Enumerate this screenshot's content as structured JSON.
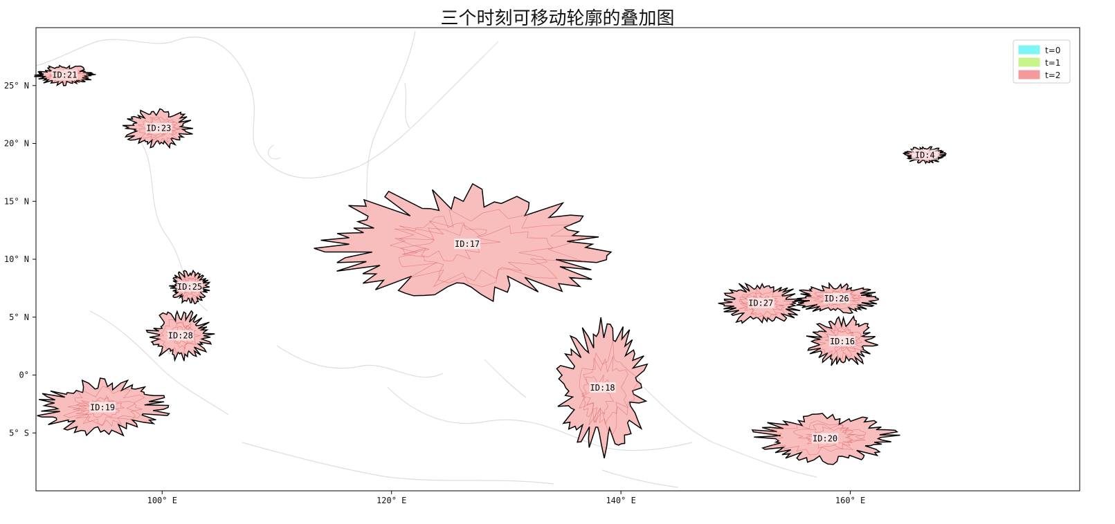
{
  "title": "三个时刻可移动轮廓的叠加图",
  "map": {
    "lon_range": [
      89,
      180
    ],
    "lat_range": [
      -10,
      30
    ],
    "x_ticks": [
      {
        "value": 100,
        "label": "100° E"
      },
      {
        "value": 120,
        "label": "120° E"
      },
      {
        "value": 140,
        "label": "140° E"
      },
      {
        "value": 160,
        "label": "160° E"
      }
    ],
    "y_ticks": [
      {
        "value": 25,
        "label": "25° N"
      },
      {
        "value": 20,
        "label": "20° N"
      },
      {
        "value": 15,
        "label": "15° N"
      },
      {
        "value": 10,
        "label": "10° N"
      },
      {
        "value": 5,
        "label": "5° N"
      },
      {
        "value": 0,
        "label": "0°"
      },
      {
        "value": -5,
        "label": "5° S"
      }
    ]
  },
  "legend": {
    "position": "top-right",
    "items": [
      {
        "label": "t=0",
        "color": "#7ff5f5"
      },
      {
        "label": "t=1",
        "color": "#c8f58a"
      },
      {
        "label": "t=2",
        "color": "#f59a9a"
      }
    ]
  },
  "regions": [
    {
      "id": "ID:21",
      "lon": 91.5,
      "lat": 25.9
    },
    {
      "id": "ID:23",
      "lon": 99.7,
      "lat": 21.3
    },
    {
      "id": "ID:4",
      "lon": 166.5,
      "lat": 19.0
    },
    {
      "id": "ID:17",
      "lon": 126.6,
      "lat": 11.3
    },
    {
      "id": "ID:25",
      "lon": 102.4,
      "lat": 7.6
    },
    {
      "id": "ID:28",
      "lon": 101.6,
      "lat": 3.4
    },
    {
      "id": "ID:27",
      "lon": 152.2,
      "lat": 6.2
    },
    {
      "id": "ID:26",
      "lon": 158.8,
      "lat": 6.6
    },
    {
      "id": "ID:16",
      "lon": 159.3,
      "lat": 2.9
    },
    {
      "id": "ID:18",
      "lon": 138.4,
      "lat": -1.1
    },
    {
      "id": "ID:19",
      "lon": 94.8,
      "lat": -2.8
    },
    {
      "id": "ID:20",
      "lon": 157.8,
      "lat": -5.5
    }
  ]
}
